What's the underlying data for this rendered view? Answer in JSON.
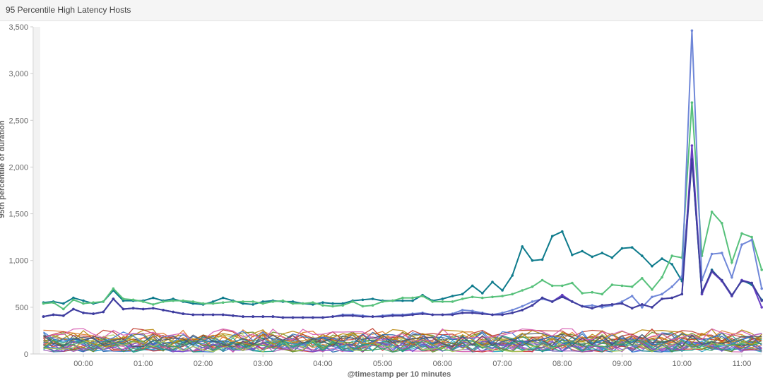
{
  "panel": {
    "title": "95 Percentile High Latency Hosts"
  },
  "colors": {
    "series_teal": "#0e7b8c",
    "series_green": "#57c17b",
    "series_blue": "#6f87d8",
    "series_purple": "#6a3fc4",
    "series_indigo": "#3f3f9e",
    "noise": [
      "#d13a3a",
      "#e07a2e",
      "#2aa6c8",
      "#6b8e23",
      "#9b59b6",
      "#1f9e89",
      "#c0392b",
      "#3c78d8",
      "#7a4fd1",
      "#a7c957",
      "#b8860b",
      "#2b6cb0",
      "#d65db1",
      "#38a169",
      "#4a5568"
    ]
  },
  "chart_data": {
    "type": "line",
    "xlabel": "@timestamp per 10 minutes",
    "ylabel": "95th percentile of duration",
    "ylim": [
      0,
      3500
    ],
    "x_ticks": [
      "00:00",
      "01:00",
      "02:00",
      "03:00",
      "04:00",
      "05:00",
      "06:00",
      "07:00",
      "08:00",
      "09:00",
      "10:00",
      "11:00"
    ],
    "y_ticks": [
      "0",
      "500",
      "1,000",
      "1,500",
      "2,000",
      "2,500",
      "3,000",
      "3,500"
    ],
    "x_start": "23:20",
    "x_interval_minutes": 10,
    "grid": false,
    "legend": "none",
    "series": [
      {
        "values": [
          550,
          560,
          540,
          600,
          570,
          540,
          560,
          680,
          570,
          570,
          570,
          600,
          570,
          590,
          560,
          540,
          530,
          560,
          600,
          570,
          540,
          530,
          560,
          570,
          560,
          560,
          540,
          530,
          550,
          540,
          540,
          570,
          580,
          590,
          570,
          570,
          570,
          570,
          630,
          570,
          590,
          620,
          640,
          730,
          650,
          770,
          680,
          840,
          1150,
          1000,
          1010,
          1260,
          1310,
          1060,
          1100,
          1040,
          1080,
          1030,
          1130,
          1140,
          1050,
          940,
          1020,
          960,
          780,
          2100,
          640,
          900,
          780,
          620,
          790,
          740,
          580
        ]
      },
      {
        "values": [
          540,
          550,
          480,
          580,
          540,
          550,
          560,
          700,
          590,
          580,
          560,
          530,
          560,
          570,
          570,
          560,
          540,
          540,
          550,
          560,
          560,
          560,
          540,
          560,
          570,
          540,
          540,
          550,
          520,
          510,
          520,
          560,
          510,
          520,
          560,
          570,
          600,
          600,
          620,
          560,
          560,
          560,
          590,
          610,
          600,
          610,
          620,
          640,
          680,
          720,
          790,
          730,
          730,
          760,
          650,
          660,
          640,
          740,
          730,
          720,
          810,
          690,
          820,
          1050,
          1030,
          2690,
          1050,
          1520,
          1400,
          980,
          1290,
          1250,
          900
        ]
      },
      {
        "values": [
          400,
          420,
          410,
          480,
          440,
          430,
          450,
          590,
          480,
          490,
          480,
          490,
          470,
          450,
          430,
          420,
          420,
          420,
          420,
          410,
          400,
          400,
          400,
          400,
          390,
          390,
          390,
          390,
          390,
          400,
          420,
          420,
          410,
          400,
          410,
          420,
          420,
          430,
          440,
          420,
          420,
          430,
          470,
          460,
          440,
          420,
          440,
          470,
          510,
          560,
          590,
          560,
          630,
          560,
          510,
          520,
          500,
          520,
          560,
          620,
          500,
          610,
          640,
          720,
          830,
          3460,
          790,
          1070,
          1080,
          820,
          1170,
          1220,
          700
        ]
      },
      {
        "values": [
          400,
          420,
          410,
          480,
          440,
          430,
          450,
          590,
          480,
          490,
          480,
          490,
          470,
          450,
          430,
          420,
          420,
          420,
          420,
          410,
          400,
          400,
          400,
          400,
          390,
          390,
          390,
          390,
          390,
          400,
          410,
          410,
          400,
          400,
          400,
          410,
          410,
          420,
          430,
          420,
          420,
          420,
          440,
          440,
          430,
          420,
          420,
          440,
          470,
          520,
          600,
          560,
          630,
          560,
          510,
          490,
          520,
          530,
          540,
          490,
          530,
          500,
          590,
          600,
          640,
          2230,
          640,
          880,
          780,
          620,
          790,
          760,
          500
        ]
      },
      {
        "values": [
          400,
          420,
          410,
          480,
          440,
          430,
          450,
          590,
          480,
          490,
          480,
          490,
          470,
          450,
          430,
          420,
          420,
          420,
          420,
          410,
          400,
          400,
          400,
          400,
          390,
          390,
          390,
          390,
          390,
          400,
          410,
          410,
          400,
          400,
          400,
          410,
          410,
          420,
          430,
          420,
          420,
          420,
          440,
          440,
          430,
          420,
          420,
          440,
          470,
          520,
          600,
          560,
          610,
          560,
          510,
          490,
          520,
          530,
          540,
          490,
          530,
          500,
          590,
          600,
          640,
          2080,
          660,
          890,
          790,
          630,
          780,
          760,
          570
        ]
      }
    ]
  }
}
